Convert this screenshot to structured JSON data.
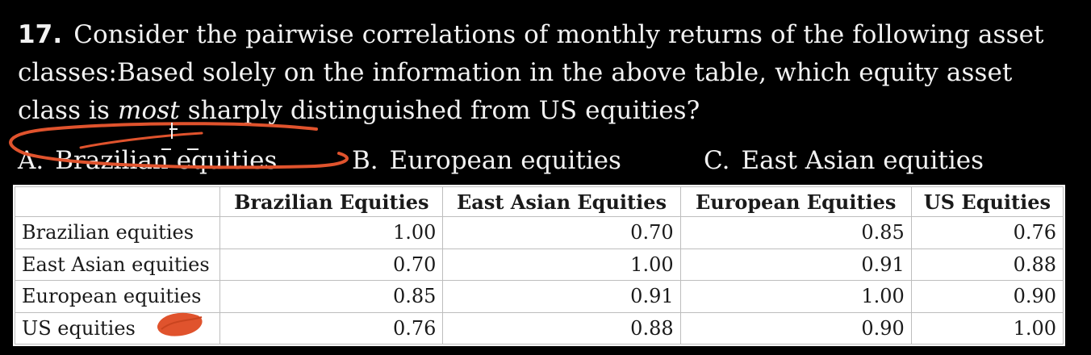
{
  "question": {
    "number": "17.",
    "text_before": "Consider the pairwise correlations of monthly returns of the following asset classes:Based solely on the information in the above table, which equity asset class is ",
    "emphasis": "most",
    "text_after": " sharply distinguished from US equities?"
  },
  "options": [
    {
      "letter": "A.",
      "label": "Brazilian equities"
    },
    {
      "letter": "B.",
      "label": "European equities"
    },
    {
      "letter": "C.",
      "label": "East Asian equities"
    }
  ],
  "table": {
    "headers": [
      "",
      "Brazilian Equities",
      "East Asian Equities",
      "European Equities",
      "US Equities"
    ],
    "rows": [
      {
        "label": "Brazilian equities",
        "values": [
          "1.00",
          "0.70",
          "0.85",
          "0.76"
        ]
      },
      {
        "label": "East Asian equities",
        "values": [
          "0.70",
          "1.00",
          "0.91",
          "0.88"
        ]
      },
      {
        "label": "European equities",
        "values": [
          "0.85",
          "0.91",
          "1.00",
          "0.90"
        ]
      },
      {
        "label": "US equities",
        "values": [
          "0.76",
          "0.88",
          "0.90",
          "1.00"
        ]
      }
    ]
  },
  "colors": {
    "background": "#000000",
    "annotation": "#e0532d"
  }
}
